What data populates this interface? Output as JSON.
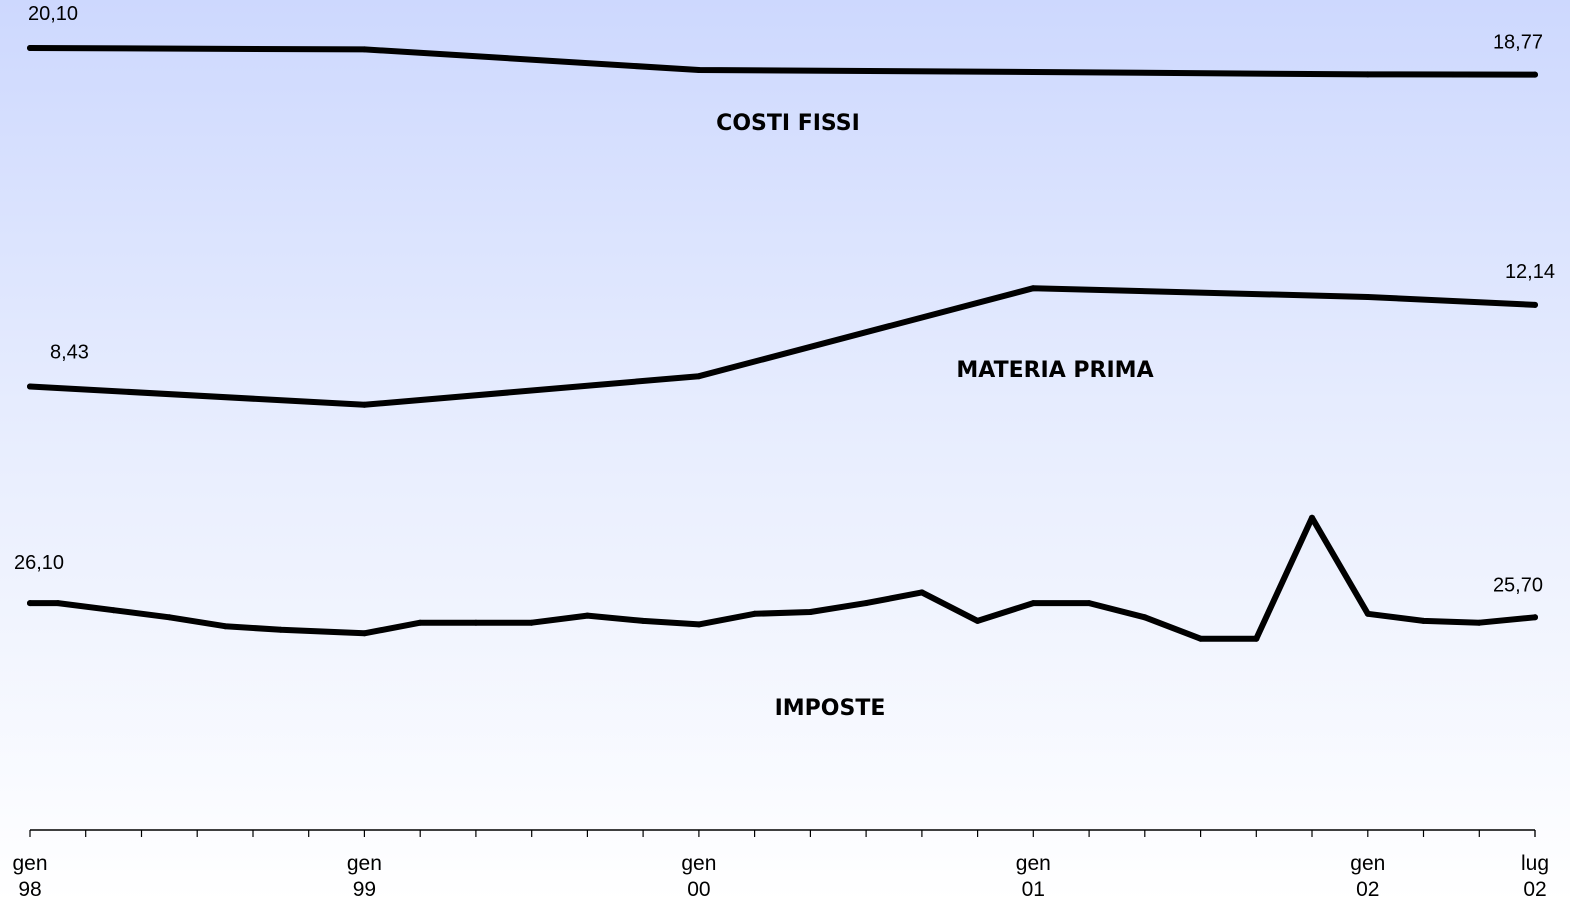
{
  "chart_data": {
    "type": "line",
    "title": "",
    "xlabel": "",
    "ylabel": "",
    "grid": false,
    "x_tick_labels": [
      {
        "month": "gen",
        "year": "98"
      },
      {
        "month": "gen",
        "year": "99"
      },
      {
        "month": "gen",
        "year": "00"
      },
      {
        "month": "gen",
        "year": "01"
      },
      {
        "month": "gen",
        "year": "02"
      },
      {
        "month": "lug",
        "year": "02"
      }
    ],
    "series": [
      {
        "name": "COSTI FISSI",
        "x": [
          "1998-01",
          "1999-01",
          "2000-01",
          "2001-01",
          "2002-01",
          "2002-07"
        ],
        "values": [
          20.1,
          20.03,
          19.0,
          18.9,
          18.78,
          18.77
        ],
        "first_label": "20,10",
        "last_label": "18,77"
      },
      {
        "name": "MATERIA PRIMA",
        "x": [
          "1998-01",
          "1999-01",
          "2000-01",
          "2001-01",
          "2002-01",
          "2002-07"
        ],
        "values": [
          8.43,
          7.6,
          8.9,
          12.9,
          12.5,
          12.14
        ],
        "first_label": "8,43",
        "last_label": "12,14"
      },
      {
        "name": "IMPOSTE",
        "x": [
          "1998-01",
          "1998-02",
          "1998-04",
          "1998-06",
          "1998-08",
          "1998-10",
          "1999-01",
          "1999-03",
          "1999-05",
          "1999-07",
          "1999-09",
          "1999-11",
          "2000-01",
          "2000-03",
          "2000-05",
          "2000-07",
          "2000-09",
          "2000-11",
          "2001-01",
          "2001-03",
          "2001-05",
          "2001-07",
          "2001-09",
          "2001-11",
          "2002-01",
          "2002-03",
          "2002-05",
          "2002-07"
        ],
        "values": [
          26.1,
          26.1,
          25.9,
          25.7,
          25.45,
          25.35,
          25.25,
          25.55,
          25.55,
          25.55,
          25.75,
          25.6,
          25.5,
          25.8,
          25.85,
          26.1,
          26.4,
          25.6,
          26.1,
          26.1,
          25.7,
          25.1,
          25.1,
          28.5,
          25.8,
          25.6,
          25.55,
          25.7
        ],
        "first_label": "26,10",
        "last_label": "25,70"
      }
    ]
  }
}
